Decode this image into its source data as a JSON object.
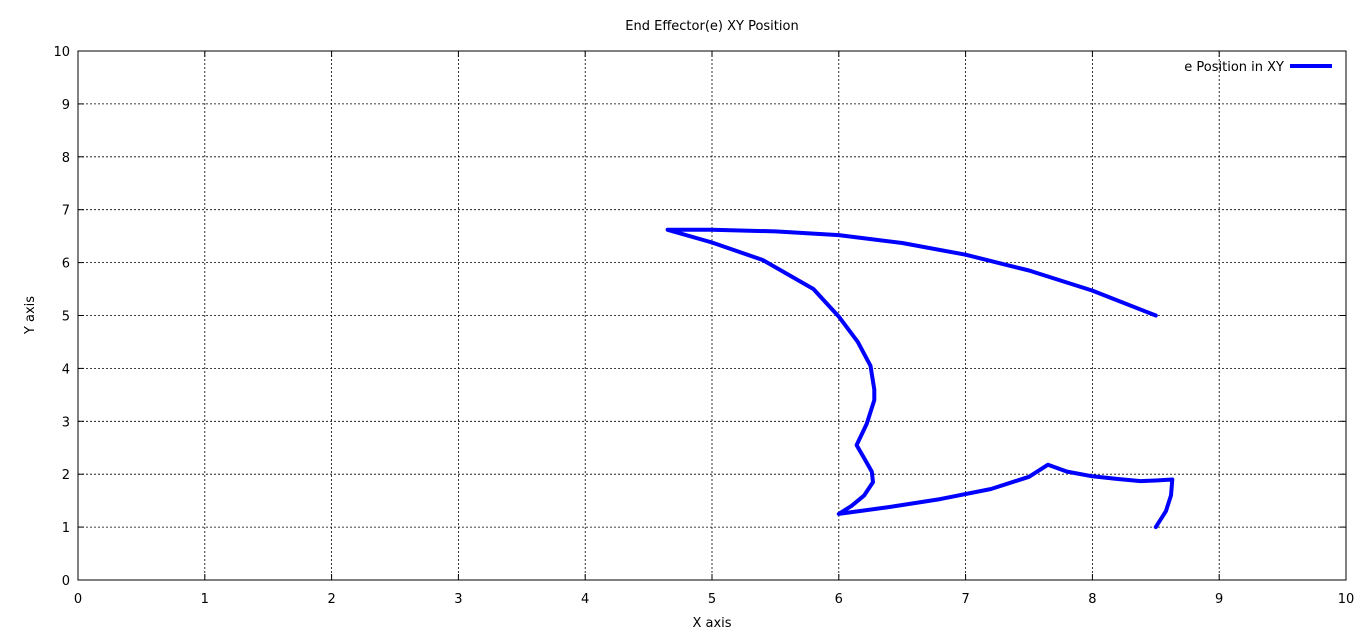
{
  "chart_data": {
    "type": "line",
    "title": "End Effector(e) XY Position",
    "xlabel": "X axis",
    "ylabel": "Y axis",
    "xlim": [
      0,
      10
    ],
    "ylim": [
      0,
      10
    ],
    "xticks": [
      0,
      1,
      2,
      3,
      4,
      5,
      6,
      7,
      8,
      9,
      10
    ],
    "yticks": [
      0,
      1,
      2,
      3,
      4,
      5,
      6,
      7,
      8,
      9,
      10
    ],
    "grid": true,
    "legend_position": "top-right",
    "series": [
      {
        "name": "e Position in XY",
        "color": "#0000ff",
        "x": [
          8.5,
          8.0,
          7.5,
          7.0,
          6.5,
          6.0,
          5.5,
          5.0,
          4.65,
          5.0,
          5.4,
          5.8,
          6.0,
          6.15,
          6.25,
          6.28,
          6.28,
          6.22,
          6.14,
          6.2,
          6.26,
          6.27,
          6.2,
          6.1,
          6.0,
          6.4,
          6.8,
          7.2,
          7.5,
          7.65,
          7.8,
          8.0,
          8.2,
          8.38,
          8.5,
          8.63,
          8.62,
          8.58,
          8.5
        ],
        "y": [
          5.0,
          5.47,
          5.85,
          6.15,
          6.37,
          6.52,
          6.59,
          6.62,
          6.62,
          6.38,
          6.05,
          5.5,
          4.98,
          4.5,
          4.05,
          3.6,
          3.4,
          2.95,
          2.55,
          2.3,
          2.05,
          1.85,
          1.6,
          1.4,
          1.25,
          1.38,
          1.53,
          1.72,
          1.95,
          2.18,
          2.05,
          1.96,
          1.91,
          1.87,
          1.88,
          1.9,
          1.6,
          1.3,
          1.0
        ]
      }
    ]
  }
}
